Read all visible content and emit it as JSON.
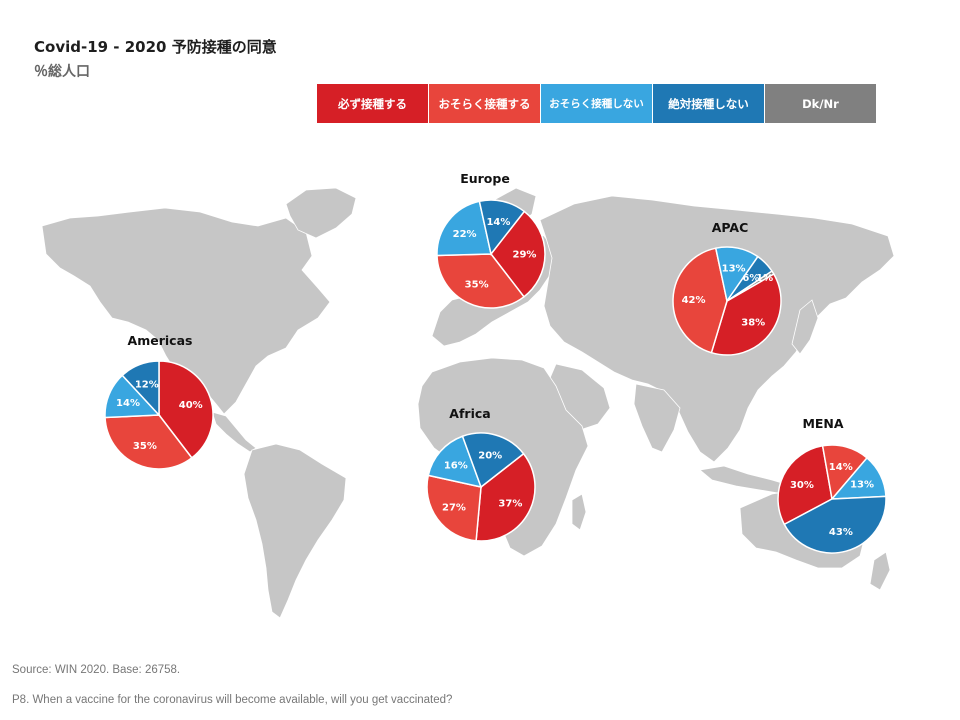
{
  "header": {
    "title": "Covid-19 - 2020 予防接種の同意",
    "subtitle": "％総人口"
  },
  "legend": [
    {
      "label": "必ず接種する",
      "color": "#d61f26"
    },
    {
      "label": "おそらく接種する",
      "color": "#e8453c"
    },
    {
      "label": "おそらく接種しない",
      "color": "#39a6e0"
    },
    {
      "label": "絶対接種しない",
      "color": "#1f78b4"
    },
    {
      "label": "Dk/Nr",
      "color": "#808080"
    }
  ],
  "chart_data": [
    {
      "type": "pie",
      "title": "Europe",
      "categories": [
        "必ず接種する",
        "おそらく接種する",
        "おそらく接種しない",
        "絶対接種しない"
      ],
      "values": [
        29,
        35,
        22,
        14
      ],
      "labels": [
        "29%",
        "35%",
        "22%",
        "14%"
      ]
    },
    {
      "type": "pie",
      "title": "APAC",
      "categories": [
        "必ず接種する",
        "おそらく接種する",
        "おそらく接種しない",
        "絶対接種しない",
        "Dk/Nr"
      ],
      "values": [
        38,
        42,
        13,
        6,
        1
      ],
      "labels": [
        "38%",
        "42%",
        "13%",
        "6%",
        "1%"
      ]
    },
    {
      "type": "pie",
      "title": "Americas",
      "categories": [
        "必ず接種する",
        "おそらく接種する",
        "おそらく接種しない",
        "絶対接種しない"
      ],
      "values": [
        40,
        35,
        14,
        12
      ],
      "labels": [
        "40%",
        "35%",
        "14%",
        "12%"
      ]
    },
    {
      "type": "pie",
      "title": "Africa",
      "categories": [
        "必ず接種する",
        "おそらく接種する",
        "おそらく接種しない",
        "絶対接種しない"
      ],
      "values": [
        37,
        27,
        16,
        20
      ],
      "labels": [
        "37%",
        "27%",
        "16%",
        "20%"
      ]
    },
    {
      "type": "pie",
      "title": "MENA",
      "categories": [
        "必ず接種する",
        "おそらく接種する",
        "おそらく接種しない",
        "絶対接種しない"
      ],
      "values": [
        30,
        14,
        13,
        43
      ],
      "labels": [
        "30%",
        "14%",
        "13%",
        "43%"
      ]
    }
  ],
  "footer": {
    "source": "Source: WIN 2020.  Base: 26758.",
    "question": "P8. When a vaccine for the coronavirus will become available, will you get vaccinated?"
  }
}
